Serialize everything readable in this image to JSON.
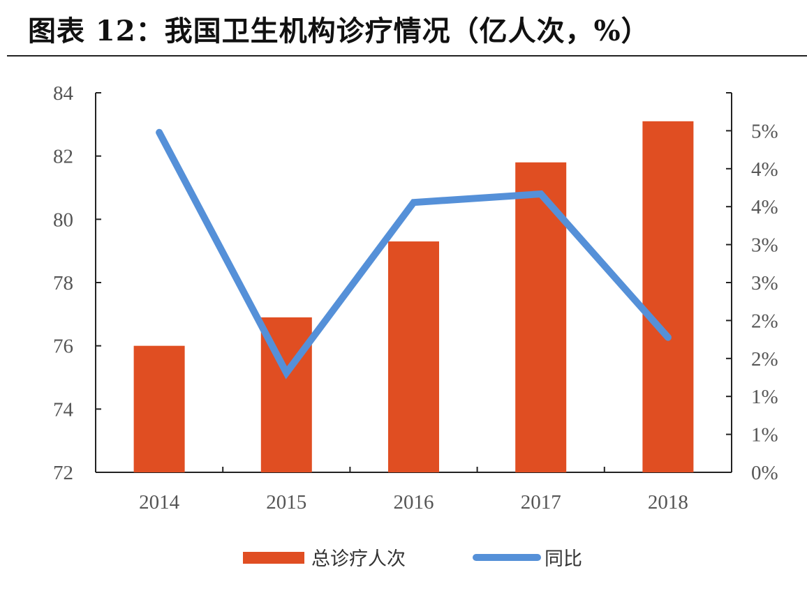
{
  "title": "图表 12：我国卫生机构诊疗情况（亿人次，%）",
  "chart_data": {
    "type": "bar",
    "title": "图表 12：我国卫生机构诊疗情况（亿人次，%）",
    "categories": [
      "2014",
      "2015",
      "2016",
      "2017",
      "2018"
    ],
    "series": [
      {
        "name": "总诊疗人次",
        "type": "bar",
        "axis": "left",
        "color": "#e04e22",
        "values": [
          76.0,
          76.9,
          79.3,
          81.8,
          83.1
        ]
      },
      {
        "name": "同比",
        "type": "line",
        "axis": "right",
        "color": "#5590d8",
        "values": [
          0.0403,
          0.0118,
          0.032,
          0.033,
          0.016
        ]
      }
    ],
    "y_left": {
      "range": [
        72,
        84
      ],
      "ticks": [
        "72",
        "74",
        "76",
        "78",
        "80",
        "82",
        "84"
      ]
    },
    "y_right": {
      "range": [
        0,
        0.045
      ],
      "ticks": [
        "0%",
        "1%",
        "1%",
        "2%",
        "2%",
        "3%",
        "3%",
        "4%",
        "4%",
        "5%"
      ]
    },
    "grid": false,
    "legend": "bottom-center"
  }
}
